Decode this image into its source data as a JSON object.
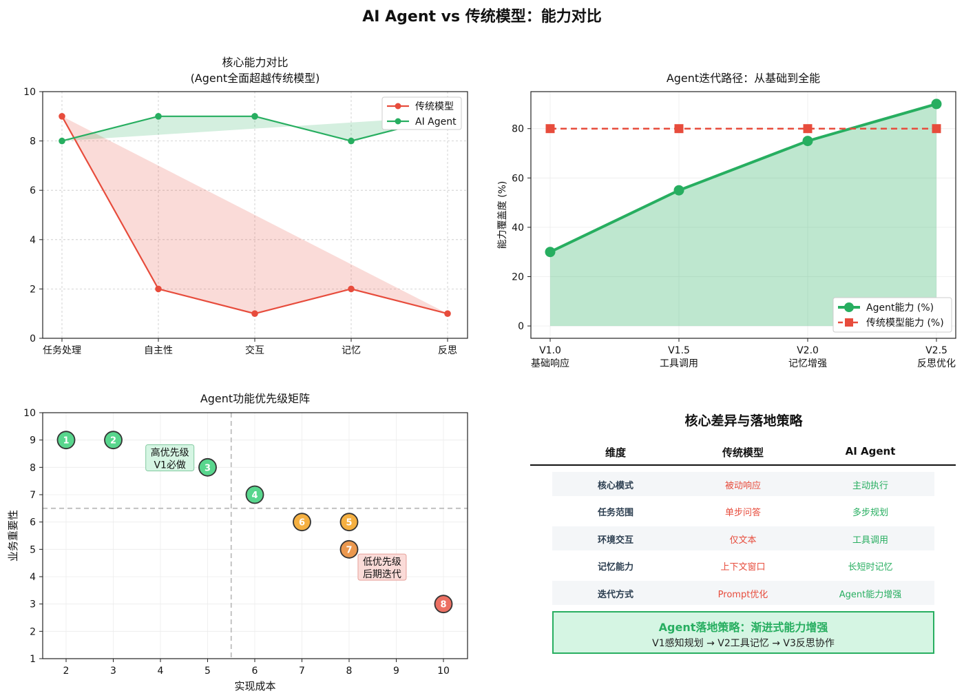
{
  "suptitle": "AI Agent vs 传统模型：能力对比",
  "chart_data": [
    {
      "type": "line",
      "title_line1": "核心能力对比",
      "title_line2": "(Agent全面超越传统模型)",
      "categories": [
        "任务处理",
        "自主性",
        "交互",
        "记忆",
        "反思"
      ],
      "ylim": [
        0,
        10
      ],
      "yticks": [
        0,
        2,
        4,
        6,
        8,
        10
      ],
      "grid": true,
      "legend": "top-right",
      "series": [
        {
          "name": "传统模型",
          "values": [
            9,
            2,
            1,
            2,
            1
          ],
          "color": "#e74c3c"
        },
        {
          "name": "AI Agent",
          "values": [
            8,
            9,
            9,
            8,
            9
          ],
          "color": "#27ae60"
        }
      ]
    },
    {
      "type": "area",
      "title": "Agent迭代路径：从基础到全能",
      "categories": [
        [
          "V1.0",
          "基础响应"
        ],
        [
          "V1.5",
          "工具调用"
        ],
        [
          "V2.0",
          "记忆增强"
        ],
        [
          "V2.5",
          "反思优化"
        ]
      ],
      "ylabel": "能力覆盖度 (%)",
      "ylim": [
        -5,
        95
      ],
      "yticks": [
        0,
        20,
        40,
        60,
        80
      ],
      "grid": true,
      "legend": "bottom-right",
      "series": [
        {
          "name": "Agent能力 (%)",
          "values": [
            30,
            55,
            75,
            90
          ],
          "color": "#27ae60"
        },
        {
          "name": "传统模型能力 (%)",
          "values": [
            80,
            80,
            80,
            80
          ],
          "color": "#e74c3c"
        }
      ]
    },
    {
      "type": "scatter",
      "title": "Agent功能优先级矩阵",
      "xlabel": "实现成本",
      "ylabel": "业务重要性",
      "xlim": [
        1.5,
        10.5
      ],
      "ylim": [
        1,
        10
      ],
      "xticks": [
        2,
        3,
        4,
        5,
        6,
        7,
        8,
        9,
        10
      ],
      "yticks": [
        1,
        2,
        3,
        4,
        5,
        6,
        7,
        8,
        9,
        10
      ],
      "grid": true,
      "threshold_x": 5.5,
      "threshold_y": 6.5,
      "points": [
        {
          "label": "1",
          "x": 2,
          "y": 9,
          "color": "#58d68d"
        },
        {
          "label": "2",
          "x": 3,
          "y": 9,
          "color": "#58d68d"
        },
        {
          "label": "3",
          "x": 5,
          "y": 8,
          "color": "#58d68d"
        },
        {
          "label": "4",
          "x": 6,
          "y": 7,
          "color": "#58d68d"
        },
        {
          "label": "5",
          "x": 8,
          "y": 6,
          "color": "#f5b041"
        },
        {
          "label": "6",
          "x": 7,
          "y": 6,
          "color": "#f5b041"
        },
        {
          "label": "7",
          "x": 8,
          "y": 5,
          "color": "#eb984e"
        },
        {
          "label": "8",
          "x": 10,
          "y": 3,
          "color": "#ec7063"
        }
      ],
      "annotations": [
        {
          "lines": [
            "高优先级",
            "V1必做"
          ],
          "x": 4.2,
          "y": 8.35,
          "bg": "#d5f5e3",
          "border": "#82c9a0"
        },
        {
          "lines": [
            "低优先级",
            "后期迭代"
          ],
          "x": 8.7,
          "y": 4.35,
          "bg": "#fadbd8",
          "border": "#e6a19a"
        }
      ]
    }
  ],
  "table": {
    "title": "核心差异与落地策略",
    "headers": [
      "维度",
      "传统模型",
      "AI Agent"
    ],
    "rows": [
      [
        "核心模式",
        "被动响应",
        "主动执行"
      ],
      [
        "任务范围",
        "单步问答",
        "多步规划"
      ],
      [
        "环境交互",
        "仅文本",
        "工具调用"
      ],
      [
        "记忆能力",
        "上下文窗口",
        "长短时记忆"
      ],
      [
        "迭代方式",
        "Prompt优化",
        "Agent能力增强"
      ]
    ],
    "strategy_title": "Agent落地策略：渐进式能力增强",
    "strategy_body": "V1感知规划 → V2工具记忆 → V3反思协作"
  }
}
